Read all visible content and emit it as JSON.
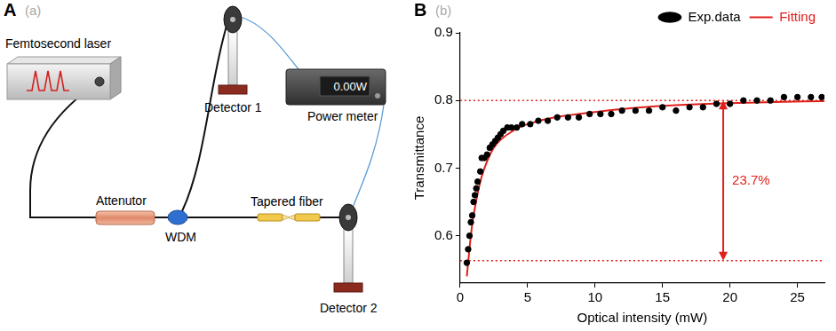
{
  "diagram": {
    "panel": "A",
    "sublabel": "(a)",
    "components": {
      "laser": "Femtosecond laser",
      "attenuator": "Attenutor",
      "wdm": "WDM",
      "fiber": "Tapered fiber",
      "detector1": "Detector 1",
      "detector2": "Detector 2",
      "power_meter": "Power meter",
      "display": "0.00W"
    }
  },
  "chart_data": {
    "type": "scatter",
    "panel": "B",
    "sublabel": "(b)",
    "x_label": "Optical intensity (mW)",
    "y_label": "Transmittance",
    "xlim": [
      0,
      27
    ],
    "xticks": [
      0,
      5,
      10,
      15,
      20,
      25
    ],
    "ylim": [
      0.53,
      0.9
    ],
    "yticks": [
      0.6,
      0.7,
      0.8,
      0.9
    ],
    "grid": false,
    "legend": "top-right",
    "series": [
      {
        "name": "Exp.data",
        "type": "scatter",
        "color": "#000000",
        "marker": "circle",
        "line_style": "none",
        "x": [
          0.5,
          0.6,
          0.7,
          0.8,
          0.9,
          1.0,
          1.1,
          1.2,
          1.3,
          1.5,
          1.6,
          1.8,
          2.0,
          2.2,
          2.4,
          2.6,
          2.8,
          3.0,
          3.2,
          3.5,
          3.8,
          4.2,
          4.6,
          5.2,
          5.8,
          6.5,
          7.2,
          8.0,
          8.8,
          9.6,
          10.4,
          11.2,
          12.0,
          13.0,
          14.0,
          15.0,
          16.0,
          17.0,
          18.0,
          19.0,
          20.0,
          21.0,
          22.0,
          23.0,
          24.0,
          25.0,
          26.0,
          26.8
        ],
        "values": [
          0.56,
          0.58,
          0.6,
          0.62,
          0.63,
          0.65,
          0.66,
          0.67,
          0.68,
          0.695,
          0.715,
          0.715,
          0.72,
          0.73,
          0.735,
          0.74,
          0.745,
          0.75,
          0.755,
          0.76,
          0.76,
          0.76,
          0.765,
          0.765,
          0.77,
          0.77,
          0.775,
          0.775,
          0.775,
          0.78,
          0.78,
          0.78,
          0.785,
          0.785,
          0.785,
          0.79,
          0.785,
          0.79,
          0.79,
          0.795,
          0.795,
          0.8,
          0.8,
          0.8,
          0.805,
          0.805,
          0.805,
          0.805
        ]
      },
      {
        "name": "Fitting",
        "type": "line",
        "color": "#e0201b",
        "marker": "none",
        "line_style": "solid",
        "x": [
          0.5,
          0.8,
          1.0,
          1.5,
          2.0,
          2.5,
          3.0,
          4.0,
          5.0,
          7.0,
          10.0,
          13.0,
          16.0,
          20.0,
          24.0,
          27.0
        ],
        "values": [
          0.54,
          0.6,
          0.63,
          0.68,
          0.71,
          0.73,
          0.742,
          0.756,
          0.765,
          0.775,
          0.783,
          0.789,
          0.793,
          0.796,
          0.798,
          0.799
        ]
      }
    ],
    "reference_lines": [
      {
        "y": 0.8,
        "color": "#e0201b",
        "line_style": "dotted"
      },
      {
        "y": 0.563,
        "color": "#e0201b",
        "line_style": "dotted"
      }
    ],
    "annotations": [
      {
        "text": "23.7%",
        "x": 19.5,
        "y_from": 0.563,
        "y_to": 0.8,
        "color": "#e0201b"
      }
    ]
  }
}
